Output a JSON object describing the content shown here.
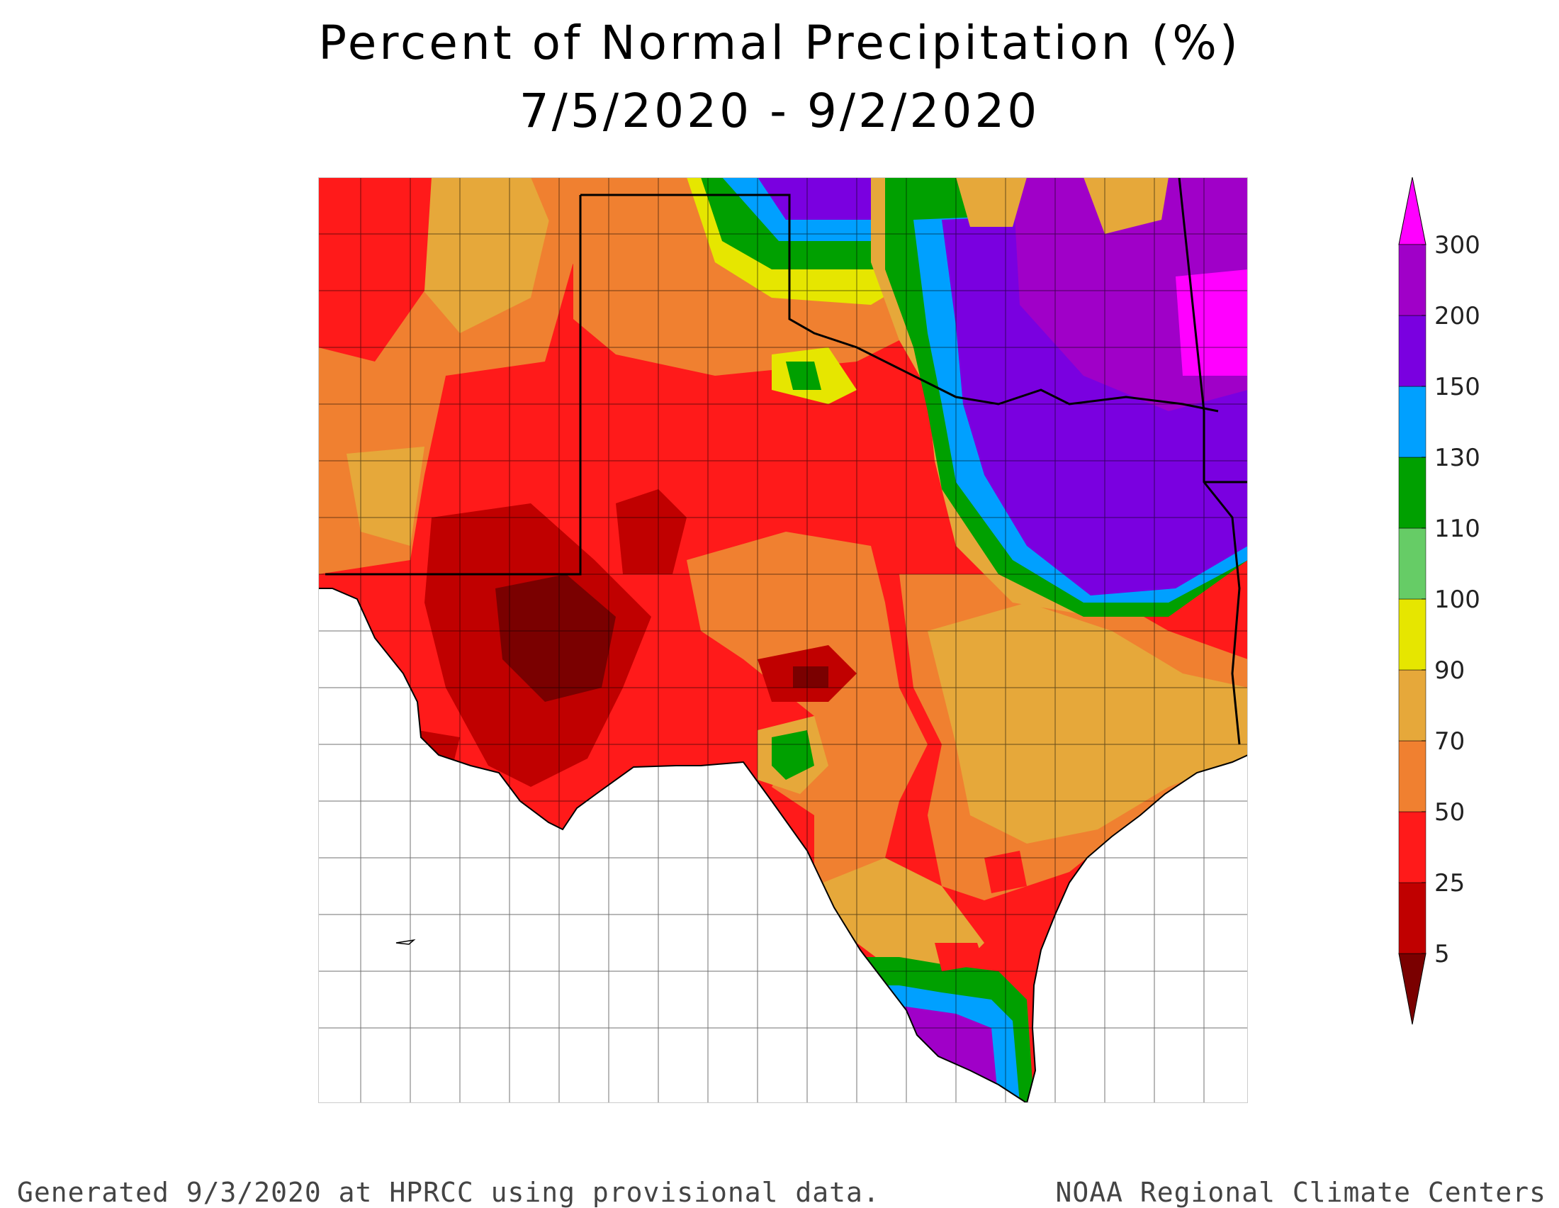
{
  "title": "Percent of Normal Precipitation (%)",
  "date_range": "7/5/2020 - 9/2/2020",
  "footer_left": "Generated 9/3/2020 at HPRCC using provisional data.",
  "footer_right": "NOAA Regional Climate Centers",
  "legend": {
    "ticks": [
      "5",
      "25",
      "50",
      "70",
      "90",
      "100",
      "110",
      "130",
      "150",
      "200",
      "300"
    ],
    "bins": [
      {
        "range": "< 5",
        "color": "#7a0000"
      },
      {
        "range": "5-25",
        "color": "#c00000"
      },
      {
        "range": "25-50",
        "color": "#ff1a1a"
      },
      {
        "range": "50-70",
        "color": "#f08030"
      },
      {
        "range": "70-90",
        "color": "#e6a83a"
      },
      {
        "range": "90-100",
        "color": "#e6e600"
      },
      {
        "range": "100-110",
        "color": "#66cc66"
      },
      {
        "range": "110-130",
        "color": "#00a000"
      },
      {
        "range": "130-150",
        "color": "#00a0ff"
      },
      {
        "range": "150-200",
        "color": "#7a00e0"
      },
      {
        "range": "200-300",
        "color": "#a000c8"
      },
      {
        "range": "> 300",
        "color": "#ff00ff"
      }
    ]
  }
}
